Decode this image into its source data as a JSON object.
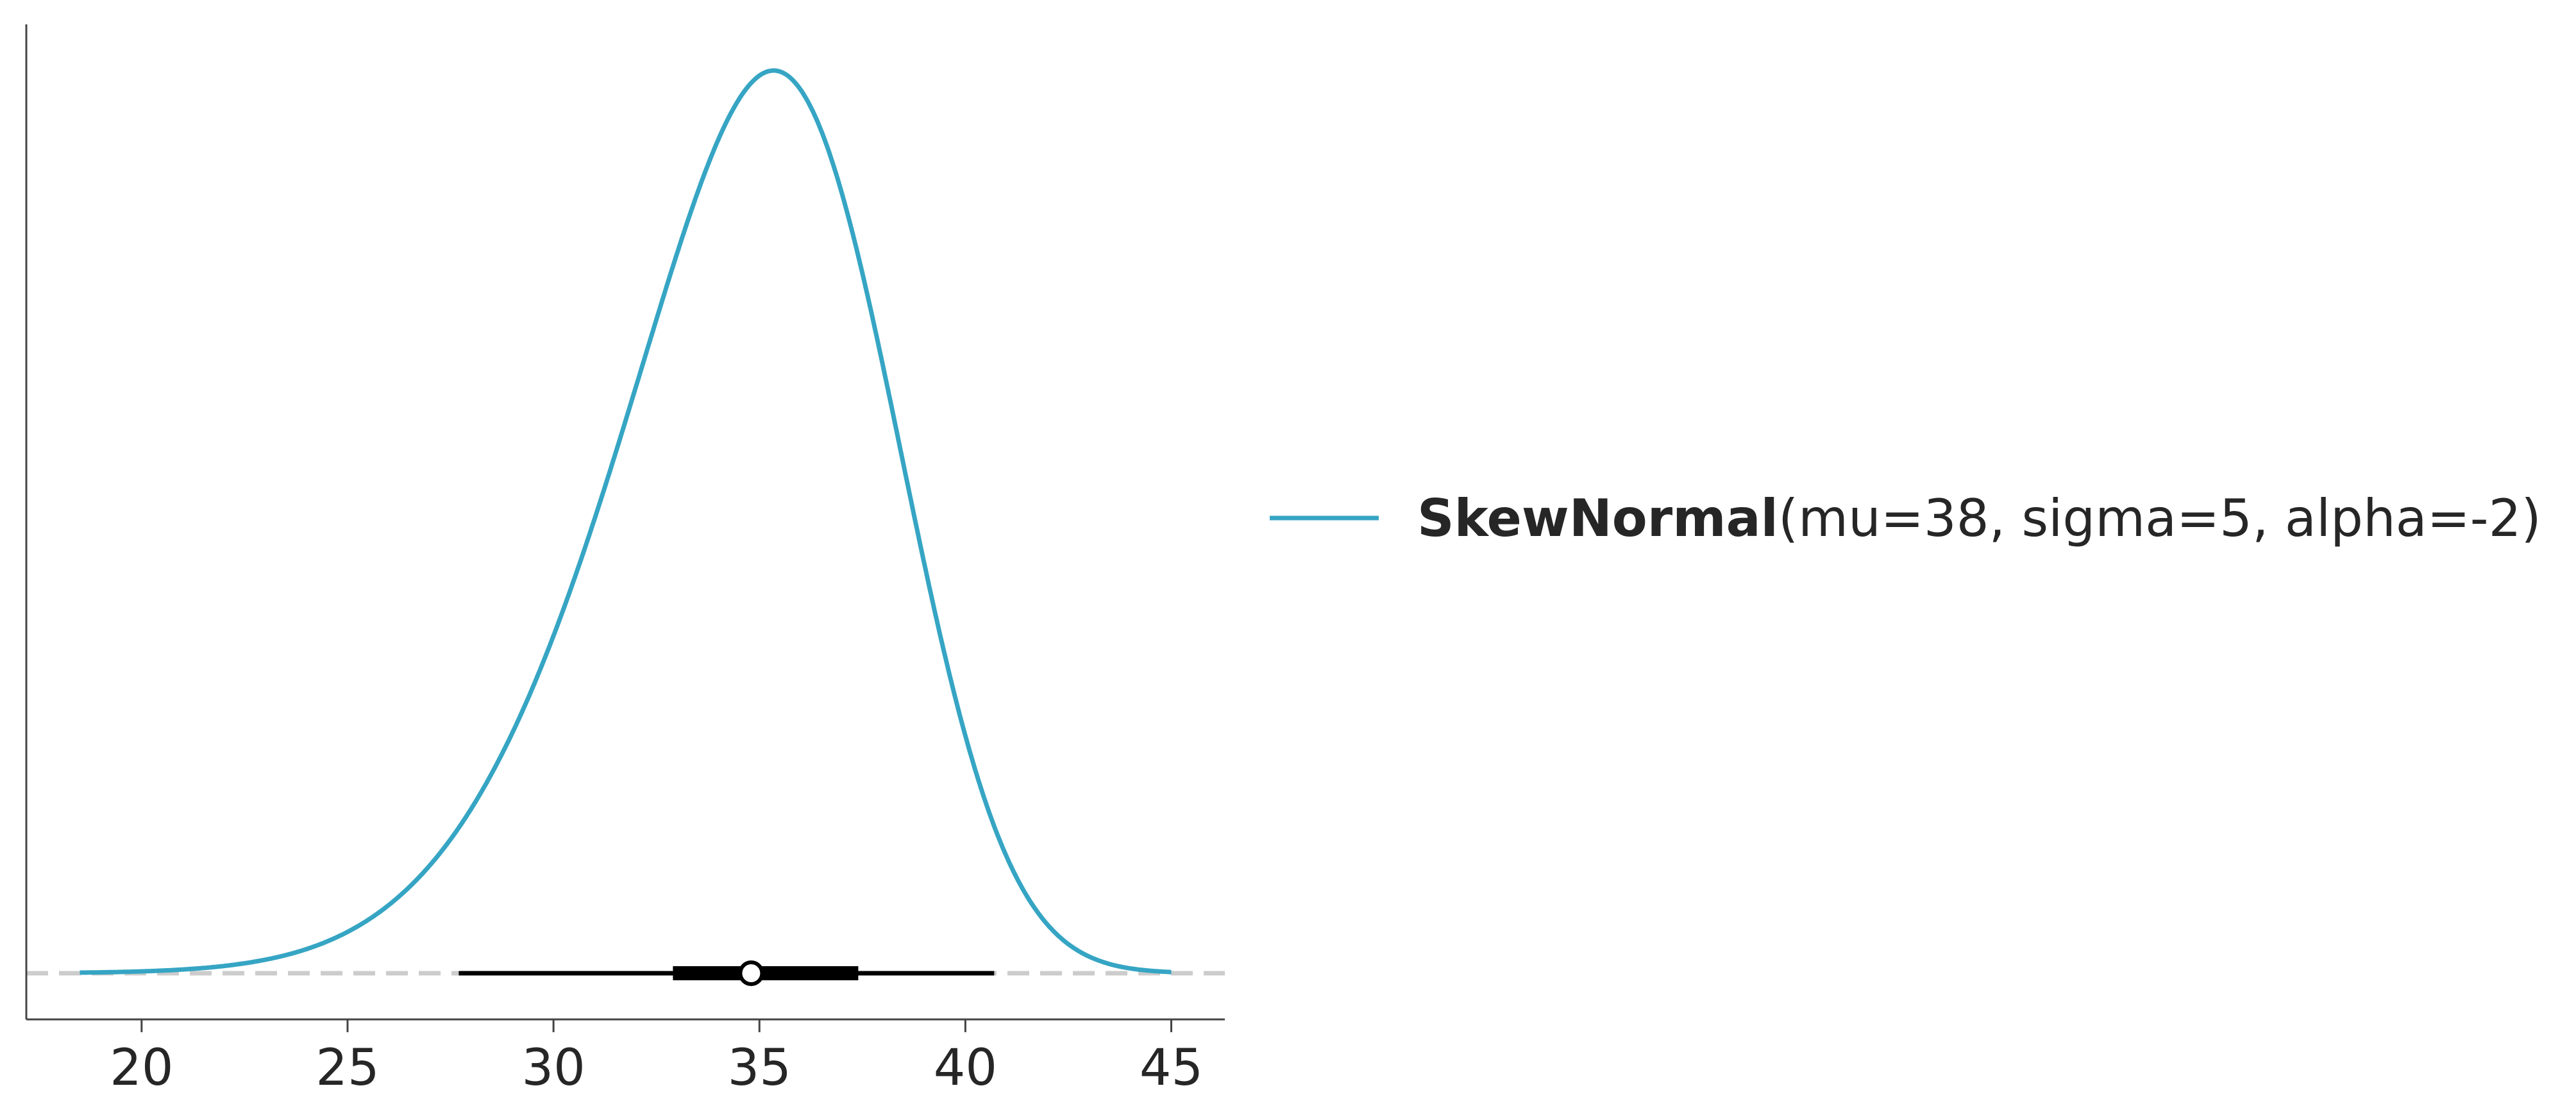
{
  "chart_data": {
    "type": "line",
    "title": "",
    "xlabel": "",
    "ylabel": "",
    "xlim": [
      17.2,
      46.3
    ],
    "ylim": [
      0,
      0.1
    ],
    "x_ticks": [
      20,
      25,
      30,
      35,
      40,
      45
    ],
    "x_tick_labels": [
      "20",
      "25",
      "30",
      "35",
      "40",
      "45"
    ],
    "y_ticks": [],
    "grid": false,
    "legend_position": "right",
    "colors": {
      "series": "#36a5c4",
      "interval": "#000000",
      "baseline": "#cccccc",
      "axis": "#444444"
    },
    "series": [
      {
        "name_bold": "SkewNormal",
        "name_params": "(mu=38, sigma=5, alpha=-2)",
        "distribution": {
          "family": "SkewNormal",
          "mu": 38,
          "sigma": 5,
          "alpha": -2
        },
        "x_range": [
          18.5,
          45.0
        ],
        "peak": {
          "x": 35.3,
          "density": 0.0947
        }
      }
    ],
    "interval_summary": {
      "hdi_94": [
        27.7,
        40.7
      ],
      "iqr": [
        32.9,
        37.4
      ],
      "median": 34.8
    }
  }
}
